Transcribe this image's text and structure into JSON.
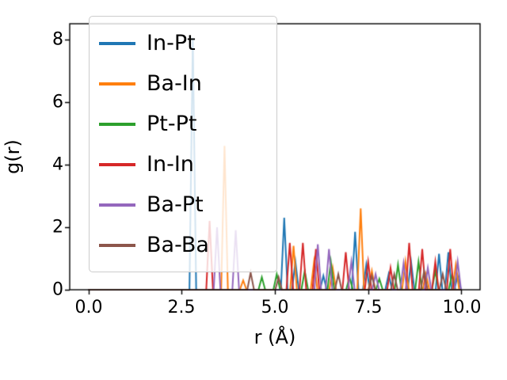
{
  "figure": {
    "background": "#ffffff"
  },
  "chart_data": {
    "type": "line",
    "title": "",
    "xlabel": "r (Å)",
    "ylabel": "g(r)",
    "xlim": [
      -0.5,
      10.5
    ],
    "ylim": [
      0,
      8.5
    ],
    "xticks": [
      0.0,
      2.5,
      5.0,
      7.5,
      10.0
    ],
    "xtick_labels": [
      "0.0",
      "2.5",
      "5.0",
      "7.5",
      "10.0"
    ],
    "yticks": [
      0,
      2,
      4,
      6,
      8
    ],
    "ytick_labels": [
      "0",
      "2",
      "4",
      "6",
      "8"
    ],
    "grid": false,
    "legend_position": "upper-left",
    "peak_half_width": 0.09,
    "baseline_value": 0,
    "x_range_of_data": [
      0,
      10
    ],
    "series": [
      {
        "name": "In-Pt",
        "color": "#1f77b4",
        "peaks": [
          [
            2.8,
            8.05
          ],
          [
            5.25,
            2.3
          ],
          [
            5.55,
            0.9
          ],
          [
            6.3,
            0.45
          ],
          [
            7.15,
            1.85
          ],
          [
            7.45,
            0.8
          ],
          [
            8.05,
            0.5
          ],
          [
            8.65,
            0.9
          ],
          [
            9.4,
            1.15
          ],
          [
            9.65,
            1.2
          ],
          [
            9.9,
            0.45
          ]
        ]
      },
      {
        "name": "Ba-In",
        "color": "#ff7f0e",
        "peaks": [
          [
            3.65,
            4.6
          ],
          [
            4.15,
            0.3
          ],
          [
            5.5,
            1.4
          ],
          [
            6.05,
            0.9
          ],
          [
            6.55,
            0.7
          ],
          [
            7.3,
            2.6
          ],
          [
            7.6,
            0.6
          ],
          [
            8.5,
            0.9
          ],
          [
            9.05,
            0.5
          ],
          [
            9.85,
            0.8
          ]
        ]
      },
      {
        "name": "Pt-Pt",
        "color": "#2ca02c",
        "peaks": [
          [
            4.65,
            0.4
          ],
          [
            5.05,
            0.5
          ],
          [
            5.8,
            0.6
          ],
          [
            6.5,
            0.9
          ],
          [
            7.0,
            0.4
          ],
          [
            7.8,
            0.35
          ],
          [
            8.3,
            0.8
          ],
          [
            8.85,
            0.9
          ],
          [
            9.3,
            0.6
          ],
          [
            9.75,
            0.5
          ]
        ]
      },
      {
        "name": "In-In",
        "color": "#d62728",
        "peaks": [
          [
            3.25,
            2.2
          ],
          [
            5.4,
            1.5
          ],
          [
            5.75,
            1.5
          ],
          [
            6.1,
            1.3
          ],
          [
            6.9,
            1.2
          ],
          [
            7.5,
            0.9
          ],
          [
            8.1,
            0.7
          ],
          [
            8.6,
            1.5
          ],
          [
            8.95,
            1.3
          ],
          [
            9.3,
            0.9
          ],
          [
            9.7,
            1.3
          ]
        ]
      },
      {
        "name": "Ba-Pt",
        "color": "#9467bd",
        "peaks": [
          [
            3.45,
            2.0
          ],
          [
            3.95,
            1.9
          ],
          [
            6.15,
            1.45
          ],
          [
            6.45,
            1.3
          ],
          [
            7.05,
            0.9
          ],
          [
            7.7,
            0.5
          ],
          [
            8.45,
            0.85
          ],
          [
            9.1,
            0.7
          ],
          [
            9.9,
            0.9
          ]
        ]
      },
      {
        "name": "Ba-Ba",
        "color": "#8c564b",
        "peaks": [
          [
            4.35,
            0.55
          ],
          [
            5.1,
            0.4
          ],
          [
            6.7,
            0.5
          ],
          [
            7.6,
            0.45
          ],
          [
            8.2,
            0.5
          ],
          [
            9.0,
            0.6
          ],
          [
            9.5,
            0.5
          ]
        ]
      }
    ]
  }
}
